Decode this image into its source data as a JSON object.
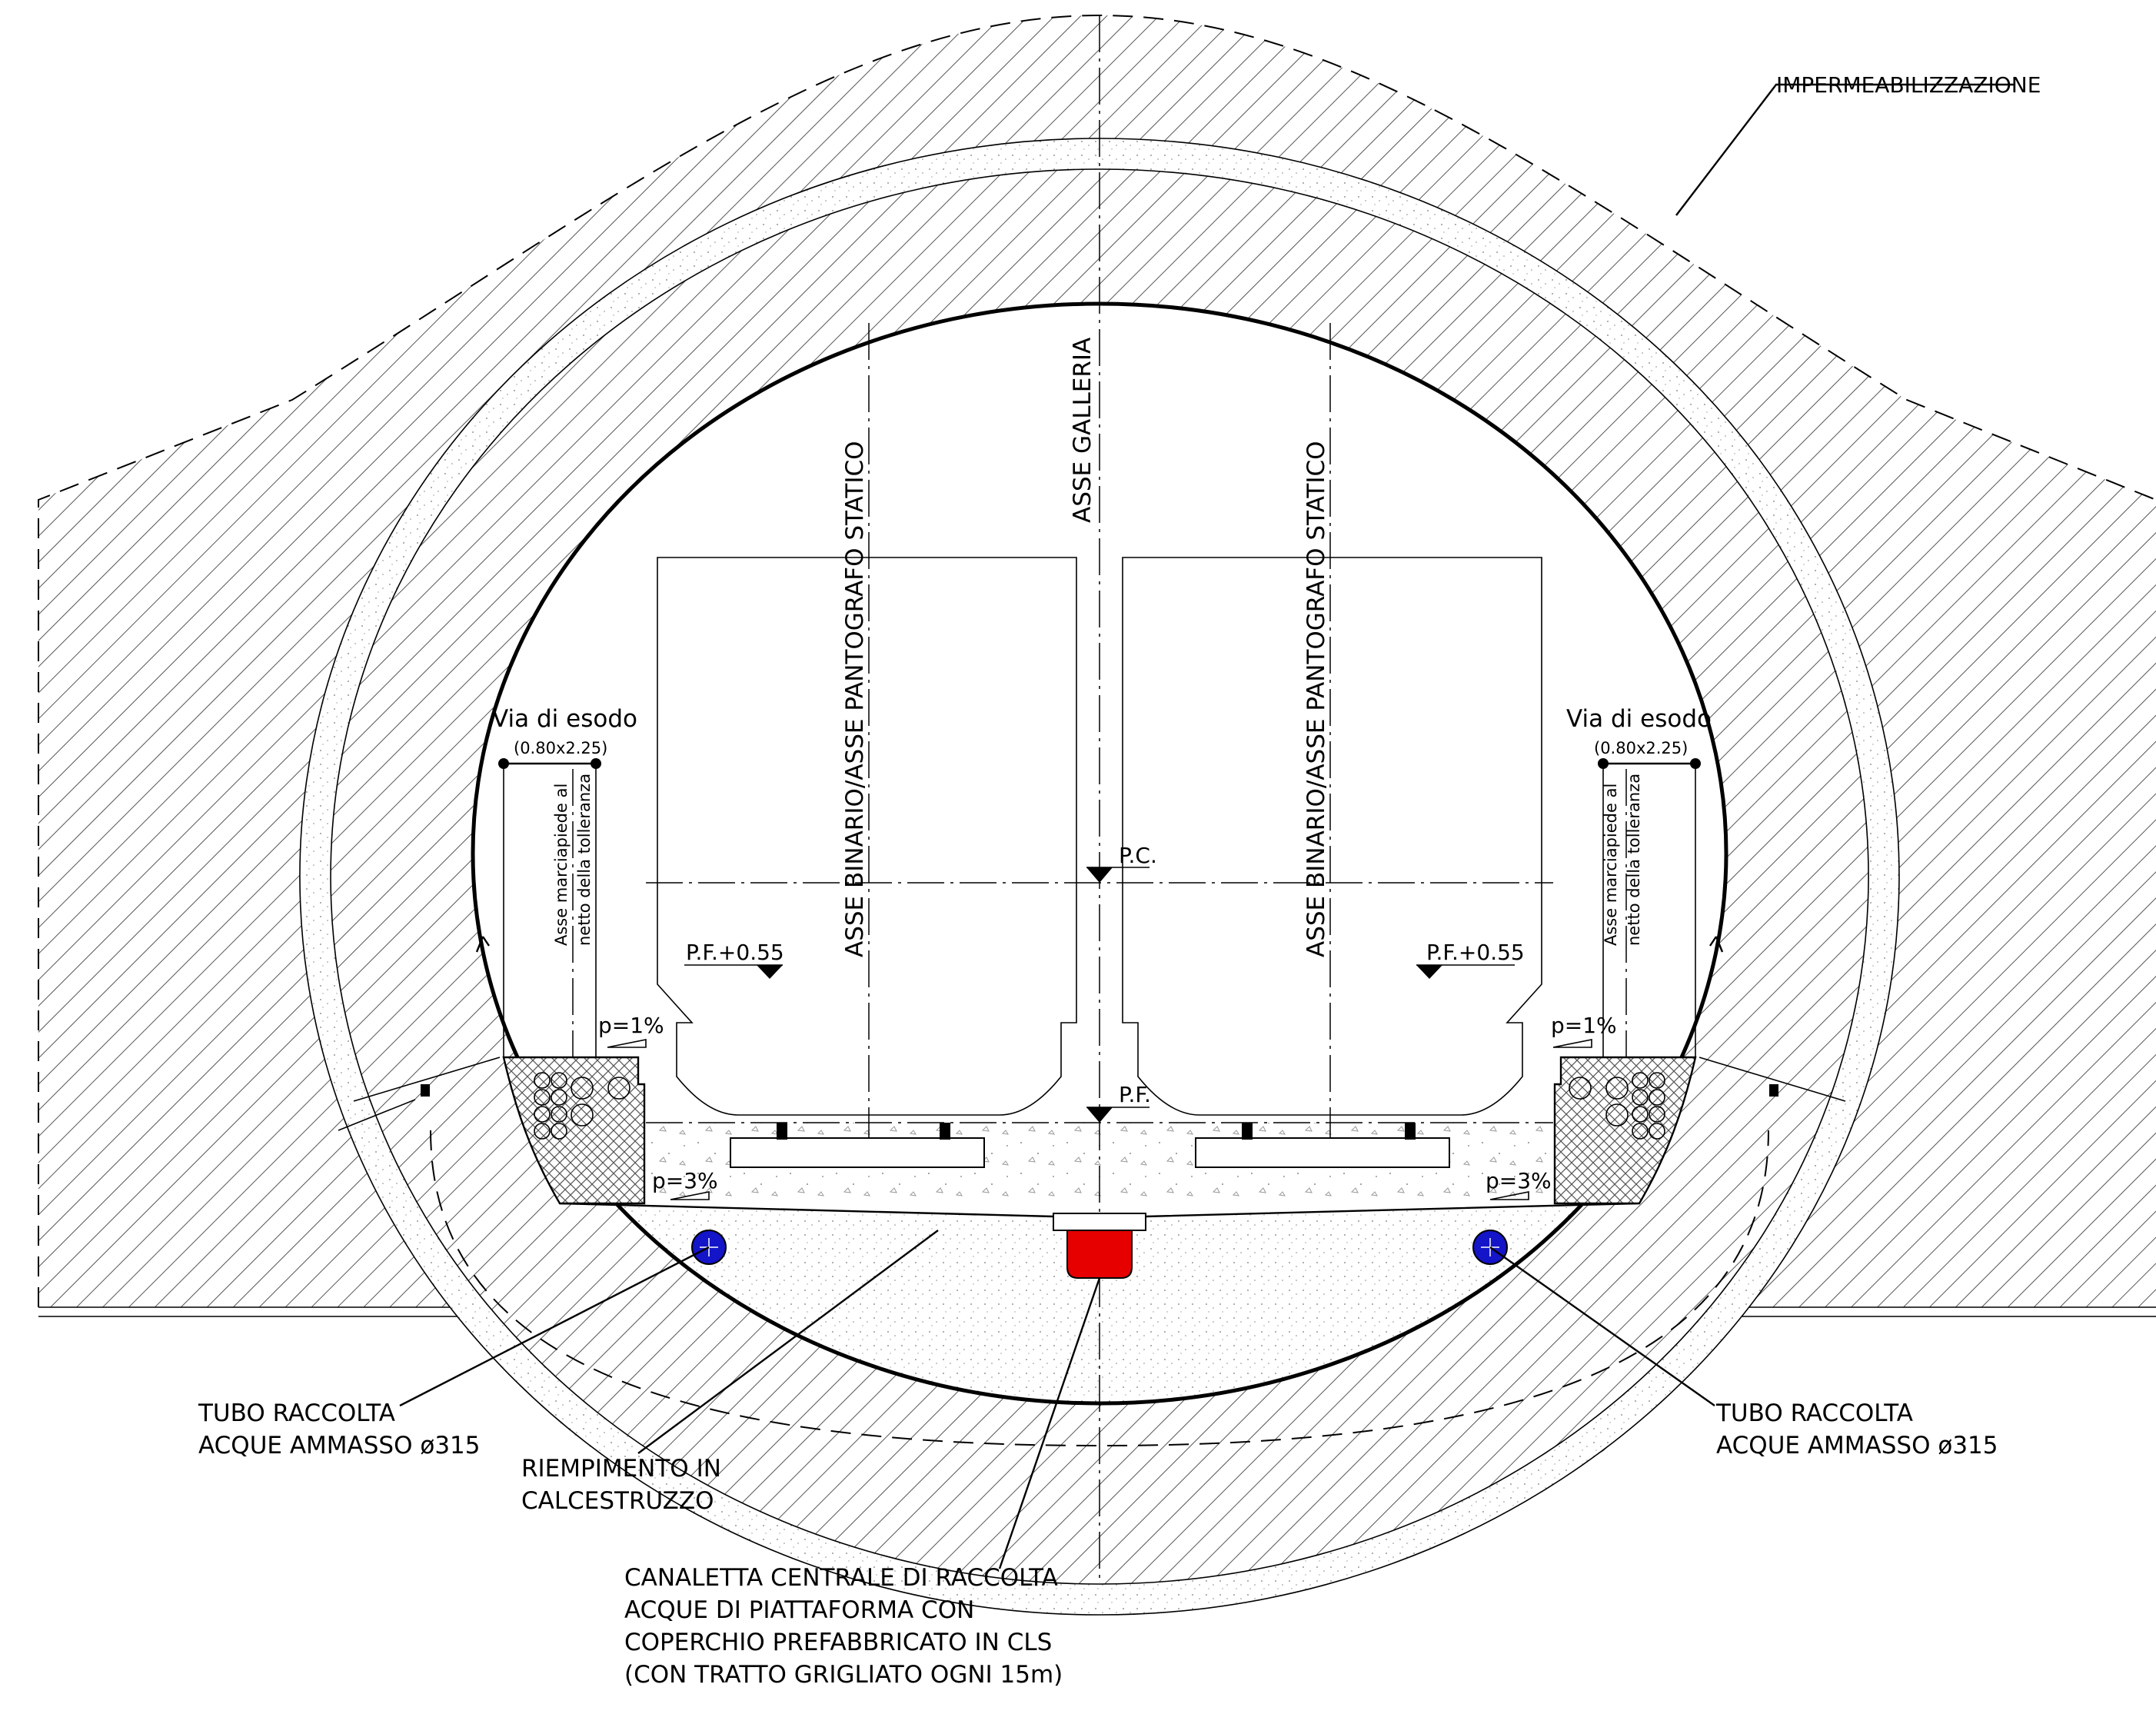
{
  "labels": {
    "waterproofing": "IMPERMEABILIZZAZIONE",
    "tunnel_axis": "ASSE GALLERIA",
    "track_axis_left": "ASSE BINARIO/ASSE PANTOGRAFO STATICO",
    "track_axis_right": "ASSE BINARIO/ASSE PANTOGRAFO STATICO",
    "escape_left_title": "Via di esodo",
    "escape_left_dim": "(0.80x2.25)",
    "escape_right_title": "Via di esodo",
    "escape_right_dim": "(0.80x2.25)",
    "walkway_axis_left_l1": "Asse marciapiede al",
    "walkway_axis_left_l2": "netto della tolleranza",
    "walkway_axis_right_l1": "Asse marciapiede al",
    "walkway_axis_right_l2": "netto della tolleranza",
    "pc_level": "P.C.",
    "pf_level": "P.F.",
    "pf_plus_left": "P.F.+0.55",
    "pf_plus_right": "P.F.+0.55",
    "slope_walk_left": "p=1%",
    "slope_walk_right": "p=1%",
    "slope_fill_left": "p=3%",
    "slope_fill_right": "p=3%",
    "pipe_left_l1": "TUBO RACCOLTA",
    "pipe_left_l2": "ACQUE AMMASSO ø315",
    "pipe_right_l1": "TUBO RACCOLTA",
    "pipe_right_l2": "ACQUE AMMASSO ø315",
    "fill_l1": "RIEMPIMENTO IN",
    "fill_l2": "CALCESTRUZZO",
    "channel_l1": "CANALETTA CENTRALE DI RACCOLTA",
    "channel_l2": "ACQUE DI PIATTAFORMA CON",
    "channel_l3": "COPERCHIO PREFABBRICATO IN CLS",
    "channel_l4": "(CON TRATTO GRIGLIATO OGNI 15m)"
  },
  "colors": {
    "pipe": "#1414c8",
    "channel": "#e60000",
    "line": "#000000"
  }
}
